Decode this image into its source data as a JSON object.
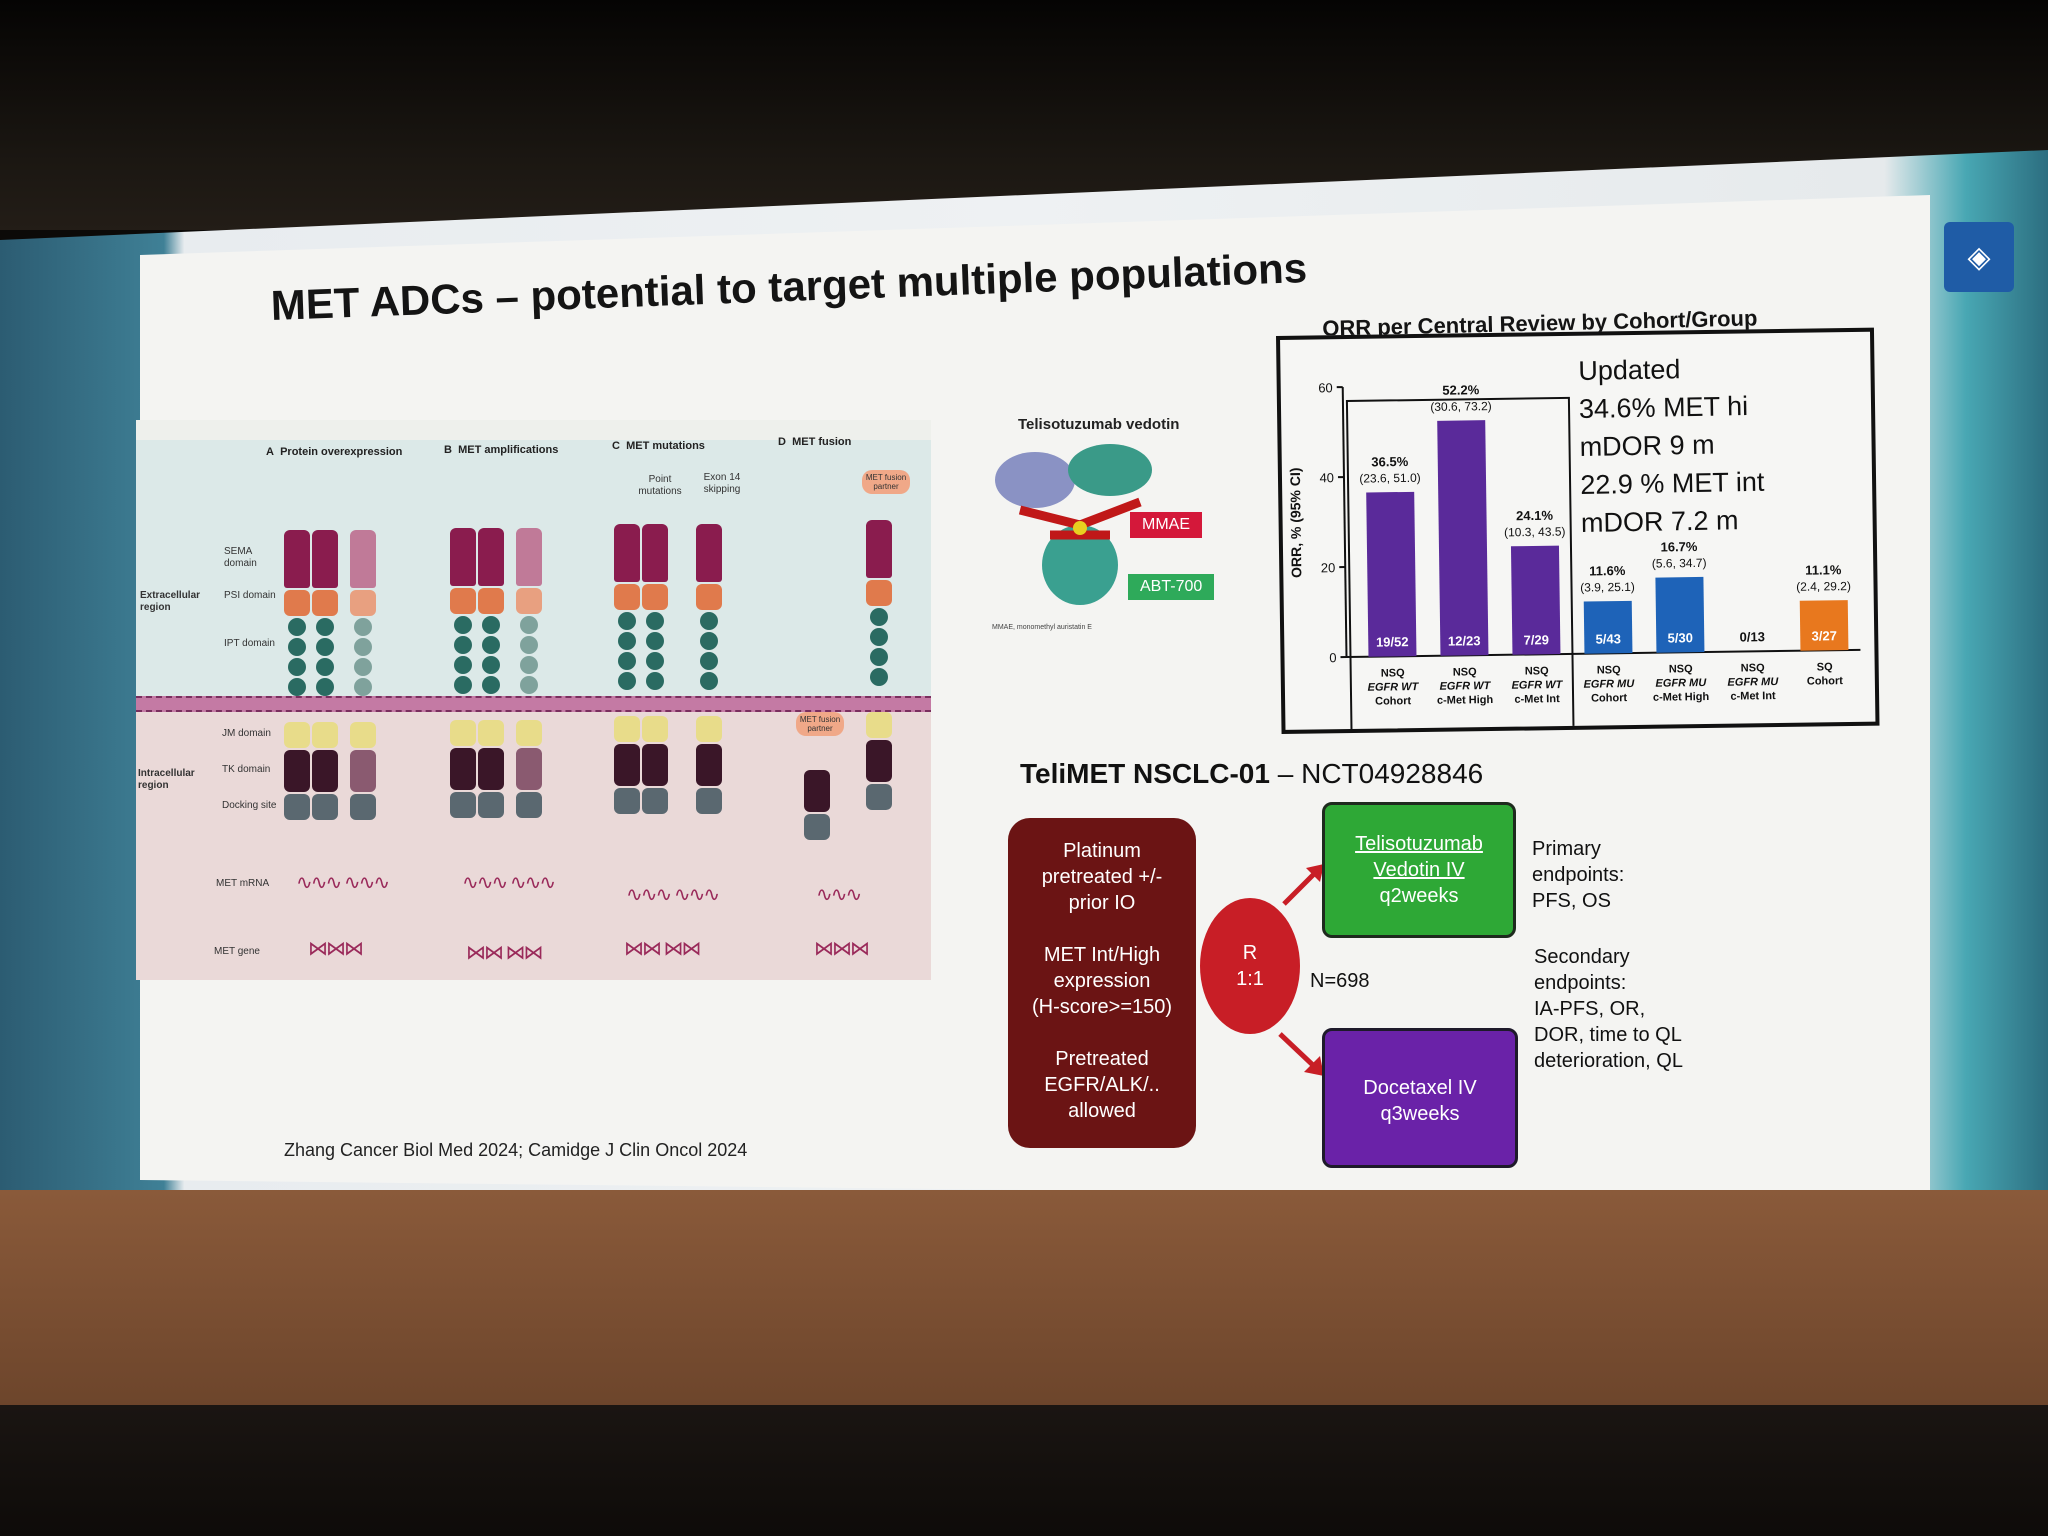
{
  "slide": {
    "title": "MET ADCs – potential to target multiple populations",
    "citation": "Zhang Cancer Biol Med 2024; Camidge J Clin Oncol 2024"
  },
  "figure": {
    "panels": [
      {
        "letter": "A",
        "label": "Protein overexpression"
      },
      {
        "letter": "B",
        "label": "MET amplifications"
      },
      {
        "letter": "C",
        "label": "MET mutations"
      },
      {
        "letter": "D",
        "label": "MET fusion"
      }
    ],
    "mutation_types": [
      "Point mutations",
      "Exon 14 skipping"
    ],
    "fusion_partner": "MET fusion partner",
    "regions": {
      "extracellular": "Extracellular region",
      "intracellular": "Intracellular region"
    },
    "domains": [
      "SEMA domain",
      "PSI domain",
      "IPT domain",
      "JM domain",
      "TK domain",
      "Docking site"
    ],
    "met_mrna": "MET mRNA",
    "met_gene": "MET gene"
  },
  "molecule": {
    "title": "Telisotuzumab vedotin",
    "tag_mmae": "MMAE",
    "tag_abt": "ABT-700",
    "footnote": "MMAE, monomethyl auristatin E"
  },
  "chart_data": {
    "type": "bar",
    "title": "ORR per Central Review by Cohort/Group",
    "ylabel": "ORR, % (95% CI)",
    "ylim": [
      0,
      60
    ],
    "yticks": [
      0,
      20,
      40,
      60
    ],
    "categories": [
      "NSQ EGFR WT Cohort",
      "NSQ EGFR WT c-Met High",
      "NSQ EGFR WT c-Met Int",
      "NSQ EGFR MU Cohort",
      "NSQ EGFR MU c-Met High",
      "NSQ EGFR MU c-Met Int",
      "SQ Cohort"
    ],
    "values": [
      36.5,
      52.2,
      24.1,
      11.6,
      16.7,
      0,
      11.1
    ],
    "value_labels": [
      "36.5%",
      "52.2%",
      "24.1%",
      "11.6%",
      "16.7%",
      "",
      "11.1%"
    ],
    "ci_labels": [
      "(23.6, 51.0)",
      "(30.6, 73.2)",
      "(10.3, 43.5)",
      "(3.9, 25.1)",
      "(5.6, 34.7)",
      "",
      "(2.4, 29.2)"
    ],
    "counts": [
      "19/52",
      "12/23",
      "7/29",
      "5/43",
      "5/30",
      "0/13",
      "3/27"
    ],
    "colors": [
      "#5a2a9a",
      "#5a2a9a",
      "#5a2a9a",
      "#1e63b8",
      "#1e63b8",
      "#1e63b8",
      "#e8781e"
    ]
  },
  "updated": {
    "lines": [
      "Updated",
      "34.6% MET hi",
      "mDOR 9 m",
      "22.9 % MET int",
      "mDOR 7.2 m"
    ]
  },
  "trial": {
    "name": "TeliMET NSCLC-01",
    "separator": " – ",
    "nct": "NCT04928846",
    "eligibility": [
      "Platinum",
      "pretreated +/-",
      "prior IO",
      "",
      "MET Int/High",
      "expression",
      "(H-score>=150)",
      "",
      "Pretreated",
      "EGFR/ALK/..",
      "allowed"
    ],
    "randomization": [
      "R",
      "1:1"
    ],
    "n": "N=698",
    "arm_tv": [
      "Telisotuzumab",
      "Vedotin IV",
      "q2weeks"
    ],
    "arm_doc": [
      "Docetaxel IV",
      "q3weeks"
    ],
    "primary": [
      "Primary",
      "endpoints:",
      "PFS, OS"
    ],
    "secondary": [
      "Secondary",
      "endpoints:",
      "IA-PFS, OR,",
      "DOR, time to QL",
      "deterioration, QL"
    ]
  },
  "colors": {
    "eligibility_box": "#6b1414",
    "randomization": "#c81e26",
    "telisotuzumab_arm": "#2ea836",
    "docetaxel_arm": "#6a22a8"
  }
}
